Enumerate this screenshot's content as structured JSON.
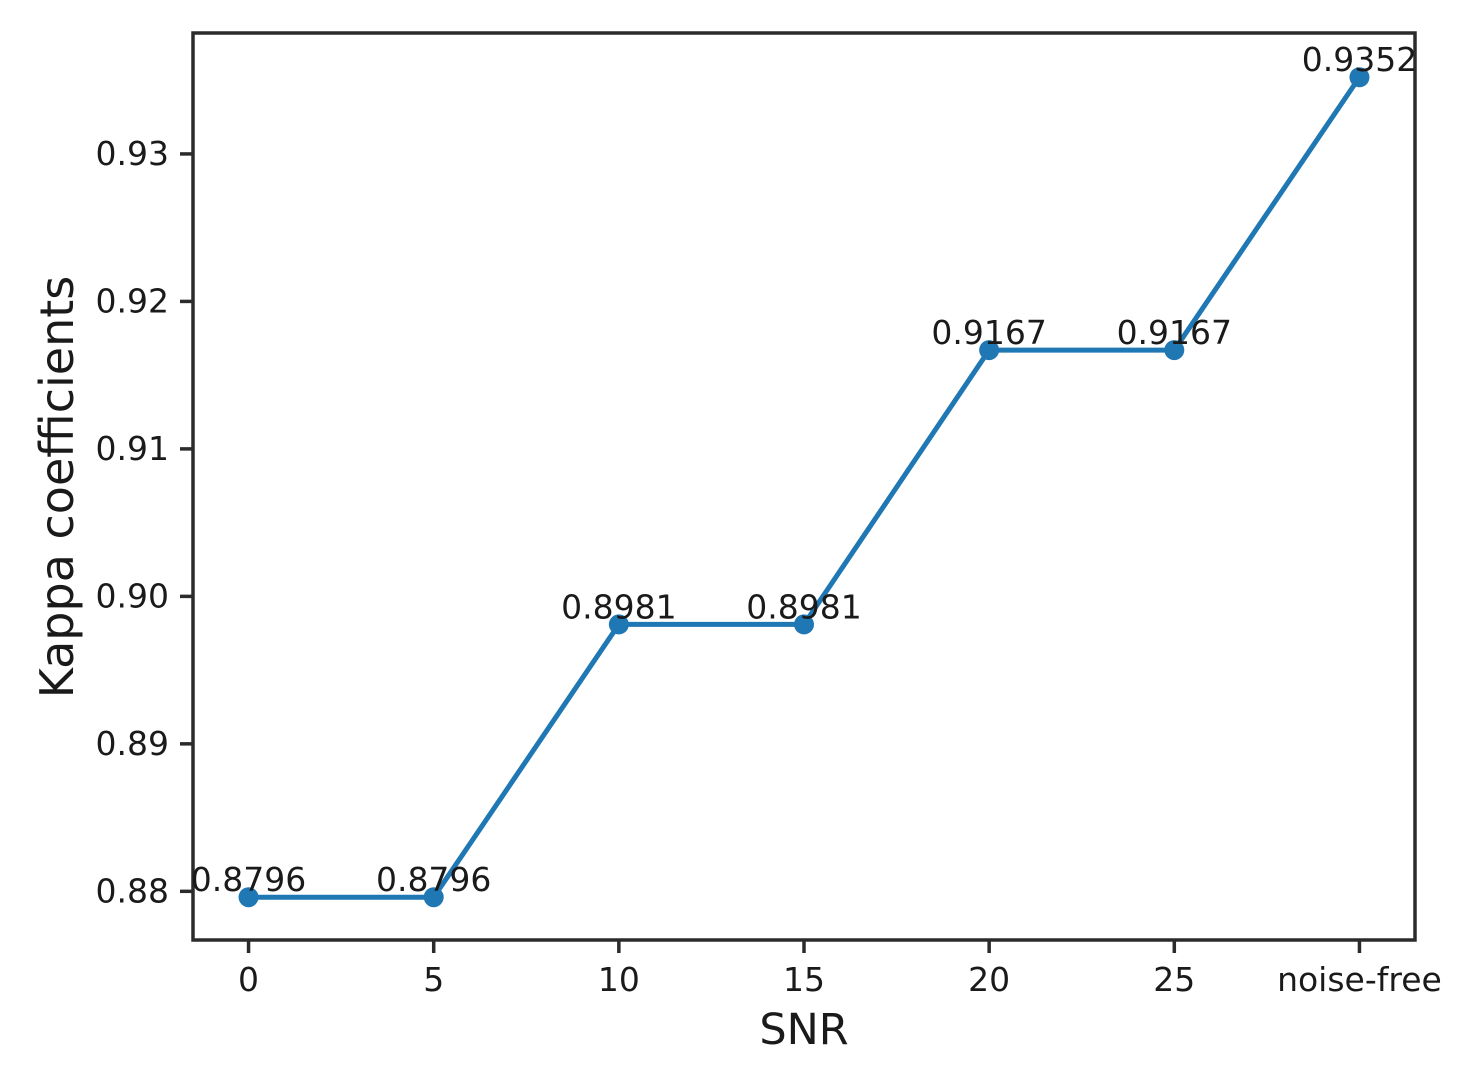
{
  "chart_data": {
    "type": "line",
    "title": "",
    "xlabel": "SNR",
    "ylabel": "Kappa coefficients",
    "categories": [
      "0",
      "5",
      "10",
      "15",
      "20",
      "25",
      "noise-free"
    ],
    "series": [
      {
        "name": "Kappa coefficients",
        "values": [
          0.8796,
          0.8796,
          0.8981,
          0.8981,
          0.9167,
          0.9167,
          0.9352
        ],
        "point_labels": [
          "0.8796",
          "0.8796",
          "0.8981",
          "0.8981",
          "0.9167",
          "0.9167",
          "0.9352"
        ],
        "color": "#1f77b4",
        "marker": "circle"
      }
    ],
    "xlim": [
      -0.3,
      6.3
    ],
    "ylim": [
      0.8767,
      0.9382
    ],
    "yticks": [
      0.88,
      0.89,
      0.9,
      0.91,
      0.92,
      0.93
    ],
    "ytick_labels": [
      "0.88",
      "0.89",
      "0.90",
      "0.91",
      "0.92",
      "0.93"
    ],
    "grid": false,
    "legend_position": "none",
    "axis_color": "#2b2b2b",
    "text_color": "#1a1a1a",
    "background_color": "#ffffff"
  }
}
